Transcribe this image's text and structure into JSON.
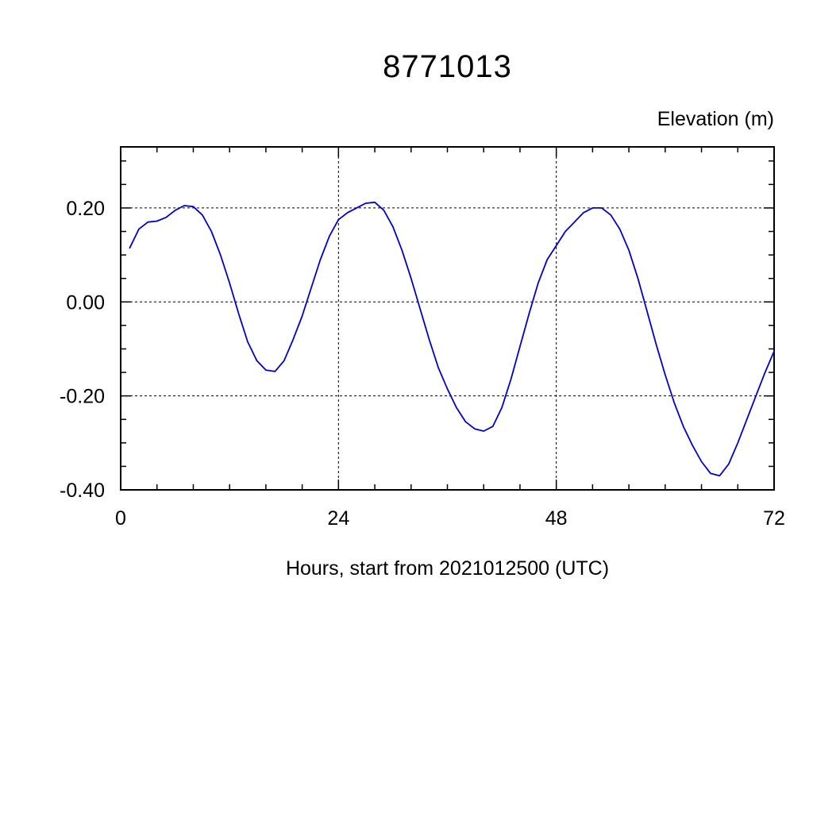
{
  "chart": {
    "title": "8771013",
    "ylabel": "Elevation (m)",
    "xlabel": "Hours, start from 2021012500 (UTC)"
  },
  "chart_data": {
    "type": "line",
    "title": "8771013",
    "xlabel": "Hours, start from 2021012500 (UTC)",
    "ylabel": "Elevation (m)",
    "xlim": [
      0,
      72
    ],
    "ylim": [
      -0.4,
      0.33
    ],
    "xticks_major": [
      0,
      24,
      48,
      72
    ],
    "xtick_labels": [
      "0",
      "24",
      "48",
      "72"
    ],
    "xtick_minor_step": 4,
    "yticks_major": [
      -0.4,
      -0.2,
      0.0,
      0.2
    ],
    "ytick_labels": [
      "-0.40",
      "-0.20",
      "0.00",
      "0.20"
    ],
    "ytick_minor_step": 0.05,
    "grid_x": [
      24,
      48
    ],
    "grid_y": [
      0.2,
      0.0,
      -0.2,
      -0.4
    ],
    "grid_style": "dashed",
    "line_color": "#0000cc",
    "legend": "none",
    "series": [
      {
        "name": "elevation",
        "x": [
          1,
          2,
          3,
          4,
          5,
          6,
          7,
          8,
          9,
          10,
          11,
          12,
          13,
          14,
          15,
          16,
          17,
          18,
          19,
          20,
          21,
          22,
          23,
          24,
          25,
          26,
          27,
          28,
          29,
          30,
          31,
          32,
          33,
          34,
          35,
          36,
          37,
          38,
          39,
          40,
          41,
          42,
          43,
          44,
          45,
          46,
          47,
          48,
          49,
          50,
          51,
          52,
          53,
          54,
          55,
          56,
          57,
          58,
          59,
          60,
          61,
          62,
          63,
          64,
          65,
          66,
          67,
          68,
          69,
          70,
          71,
          72
        ],
        "y": [
          0.115,
          0.155,
          0.17,
          0.172,
          0.18,
          0.195,
          0.205,
          0.203,
          0.185,
          0.15,
          0.1,
          0.04,
          -0.025,
          -0.085,
          -0.125,
          -0.145,
          -0.148,
          -0.125,
          -0.08,
          -0.03,
          0.03,
          0.09,
          0.14,
          0.175,
          0.19,
          0.2,
          0.21,
          0.212,
          0.195,
          0.16,
          0.11,
          0.05,
          -0.015,
          -0.08,
          -0.14,
          -0.185,
          -0.225,
          -0.255,
          -0.27,
          -0.275,
          -0.265,
          -0.225,
          -0.165,
          -0.095,
          -0.025,
          0.04,
          0.09,
          0.12,
          0.15,
          0.17,
          0.19,
          0.2,
          0.2,
          0.185,
          0.155,
          0.11,
          0.05,
          -0.02,
          -0.09,
          -0.155,
          -0.215,
          -0.265,
          -0.305,
          -0.34,
          -0.365,
          -0.37,
          -0.345,
          -0.3,
          -0.25,
          -0.2,
          -0.15,
          -0.105
        ]
      }
    ]
  }
}
